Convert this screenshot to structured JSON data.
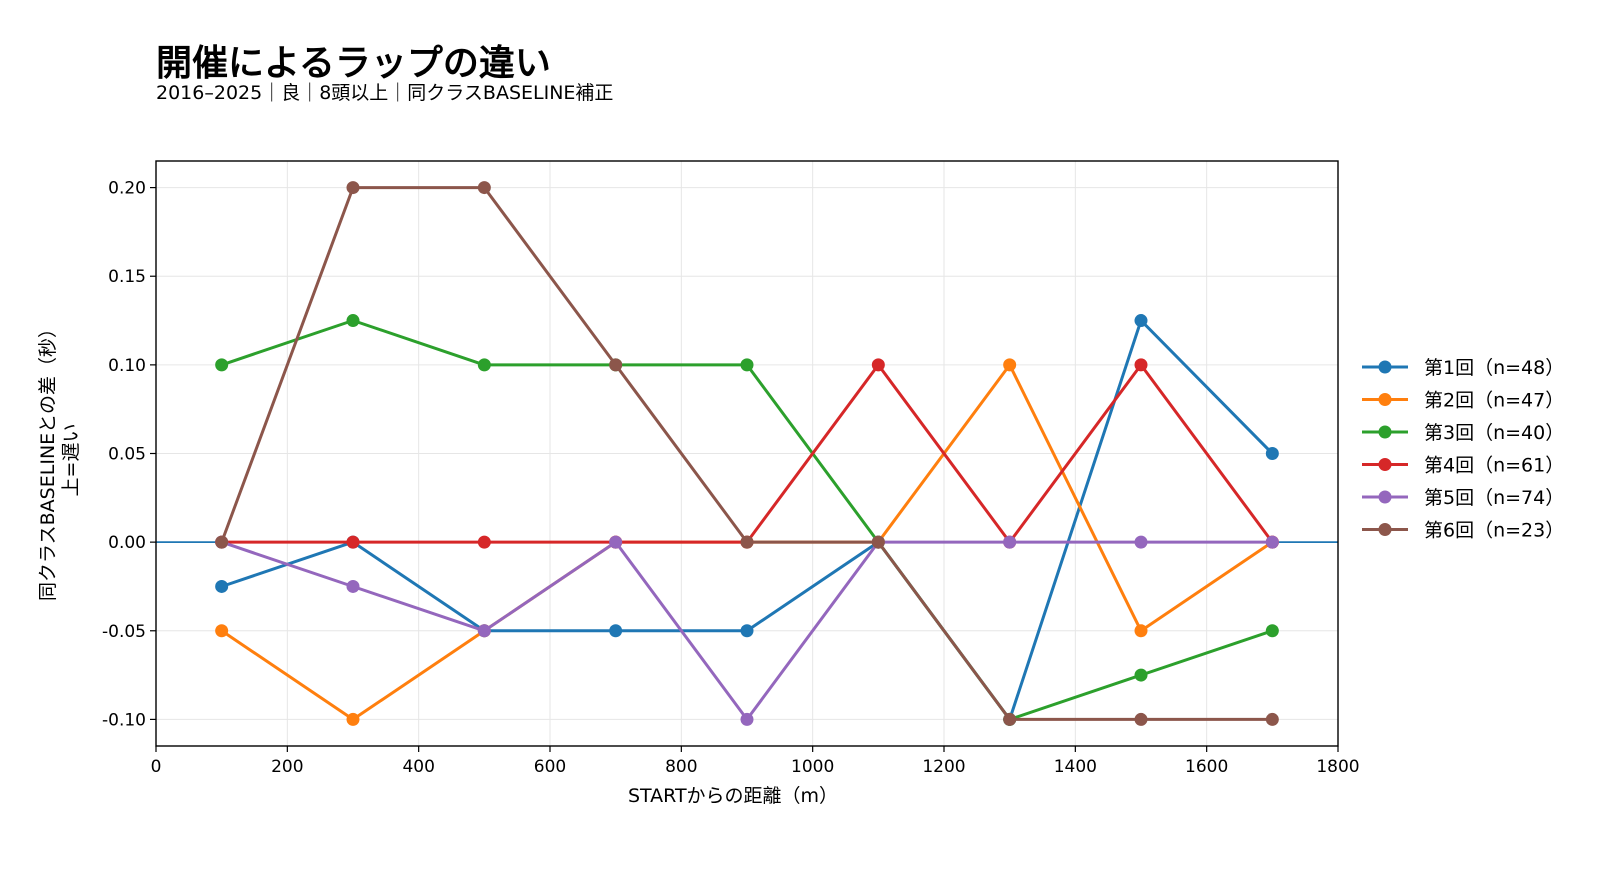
{
  "chart_data": {
    "type": "line",
    "title": "開催によるラップの違い",
    "subtitle": "2016–2025｜良｜8頭以上｜同クラスBASELINE補正",
    "xlabel": "STARTからの距離（m）",
    "ylabel_line1": "同クラスBASELINEとの差（秒）",
    "ylabel_line2": "上=遅い",
    "xlim": [
      0,
      1800
    ],
    "ylim": [
      -0.115,
      0.215
    ],
    "xticks": [
      0,
      200,
      400,
      600,
      800,
      1000,
      1200,
      1400,
      1600,
      1800
    ],
    "yticks": [
      -0.1,
      -0.05,
      0.0,
      0.05,
      0.1,
      0.15,
      0.2
    ],
    "ytick_labels": [
      "-0.10",
      "-0.05",
      "0.00",
      "0.05",
      "0.10",
      "0.15",
      "0.20"
    ],
    "grid": true,
    "reference_line_y": 0,
    "legend_position": "right",
    "x": [
      100,
      300,
      500,
      700,
      900,
      1100,
      1300,
      1500,
      1700
    ],
    "series": [
      {
        "name": "第1回（n=48）",
        "color": "#1f77b4",
        "values": [
          -0.025,
          0.0,
          -0.05,
          -0.05,
          -0.05,
          0.0,
          -0.1,
          0.125,
          0.05
        ]
      },
      {
        "name": "第2回（n=47）",
        "color": "#ff7f0e",
        "values": [
          -0.05,
          -0.1,
          -0.05,
          0.0,
          0.0,
          0.0,
          0.1,
          -0.05,
          0.0
        ]
      },
      {
        "name": "第3回（n=40）",
        "color": "#2ca02c",
        "values": [
          0.1,
          0.125,
          0.1,
          0.1,
          0.1,
          0.0,
          -0.1,
          -0.075,
          -0.05
        ]
      },
      {
        "name": "第4回（n=61）",
        "color": "#d62728",
        "values": [
          0.0,
          0.0,
          0.0,
          0.0,
          0.0,
          0.1,
          0.0,
          0.1,
          0.0
        ]
      },
      {
        "name": "第5回（n=74）",
        "color": "#9467bd",
        "values": [
          0.0,
          -0.025,
          -0.05,
          0.0,
          -0.1,
          0.0,
          0.0,
          0.0,
          0.0
        ]
      },
      {
        "name": "第6回（n=23）",
        "color": "#8c564b",
        "values": [
          0.0,
          0.2,
          0.2,
          0.1,
          0.0,
          0.0,
          -0.1,
          -0.1,
          -0.1
        ]
      }
    ]
  }
}
